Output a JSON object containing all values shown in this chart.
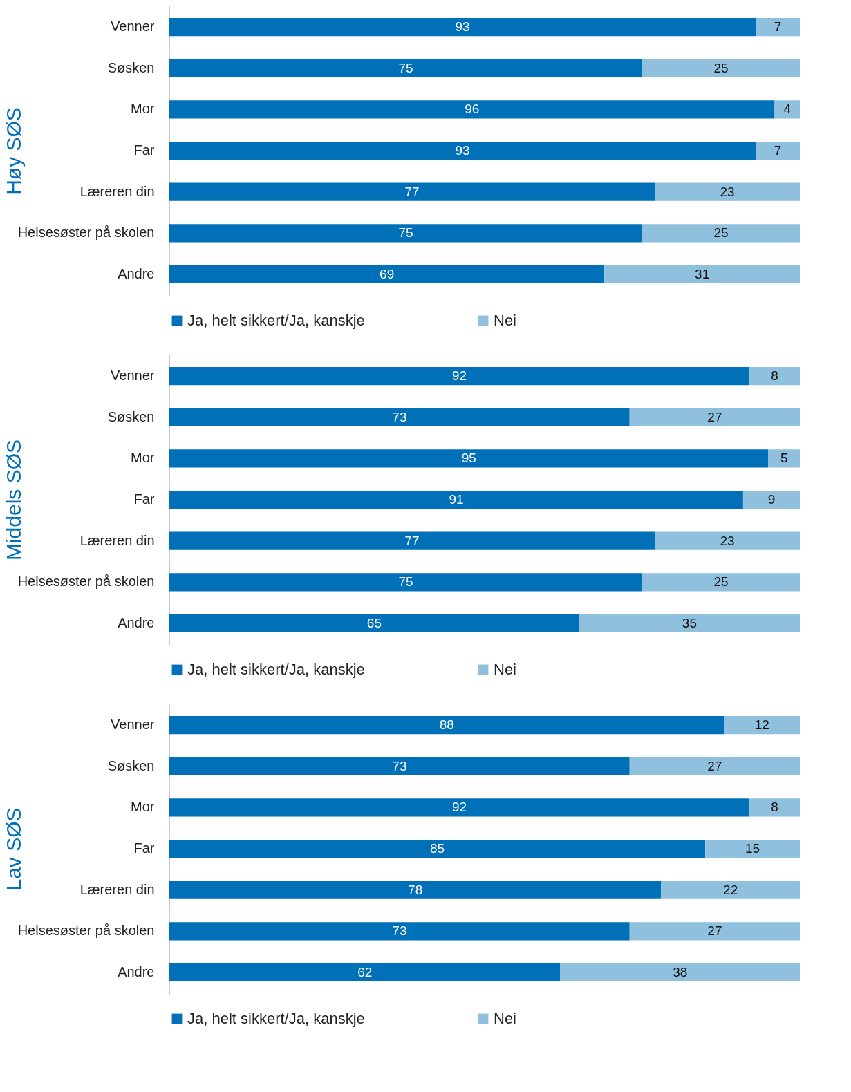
{
  "chart_data": [
    {
      "type": "bar",
      "orientation": "horizontal",
      "stacked": true,
      "ylabel": "Høy SØS",
      "categories": [
        "Venner",
        "Søsken",
        "Mor",
        "Far",
        "Læreren din",
        "Helsesøster på skolen",
        "Andre"
      ],
      "xlim": [
        0,
        100
      ],
      "tick_labels": "y",
      "data_labels": true,
      "legend": "bottom",
      "series": [
        {
          "name": "Ja, helt sikkert/Ja, kanskje",
          "color": "#0070b8",
          "values": [
            93,
            75,
            96,
            93,
            77,
            75,
            69
          ]
        },
        {
          "name": "Nei",
          "color": "#8fc1de",
          "values": [
            7,
            25,
            4,
            7,
            23,
            25,
            31
          ]
        }
      ]
    },
    {
      "type": "bar",
      "orientation": "horizontal",
      "stacked": true,
      "ylabel": "Middels SØS",
      "categories": [
        "Venner",
        "Søsken",
        "Mor",
        "Far",
        "Læreren din",
        "Helsesøster på skolen",
        "Andre"
      ],
      "xlim": [
        0,
        100
      ],
      "tick_labels": "y",
      "data_labels": true,
      "legend": "bottom",
      "series": [
        {
          "name": "Ja, helt sikkert/Ja, kanskje",
          "color": "#0070b8",
          "values": [
            92,
            73,
            95,
            91,
            77,
            75,
            65
          ]
        },
        {
          "name": "Nei",
          "color": "#8fc1de",
          "values": [
            8,
            27,
            5,
            9,
            23,
            25,
            35
          ]
        }
      ]
    },
    {
      "type": "bar",
      "orientation": "horizontal",
      "stacked": true,
      "ylabel": "Lav SØS",
      "categories": [
        "Venner",
        "Søsken",
        "Mor",
        "Far",
        "Læreren din",
        "Helsesøster på skolen",
        "Andre"
      ],
      "xlim": [
        0,
        100
      ],
      "tick_labels": "y",
      "data_labels": true,
      "legend": "bottom",
      "series": [
        {
          "name": "Ja, helt sikkert/Ja, kanskje",
          "color": "#0070b8",
          "values": [
            88,
            73,
            92,
            85,
            78,
            73,
            62
          ]
        },
        {
          "name": "Nei",
          "color": "#8fc1de",
          "values": [
            12,
            27,
            8,
            15,
            22,
            27,
            38
          ]
        }
      ]
    }
  ]
}
